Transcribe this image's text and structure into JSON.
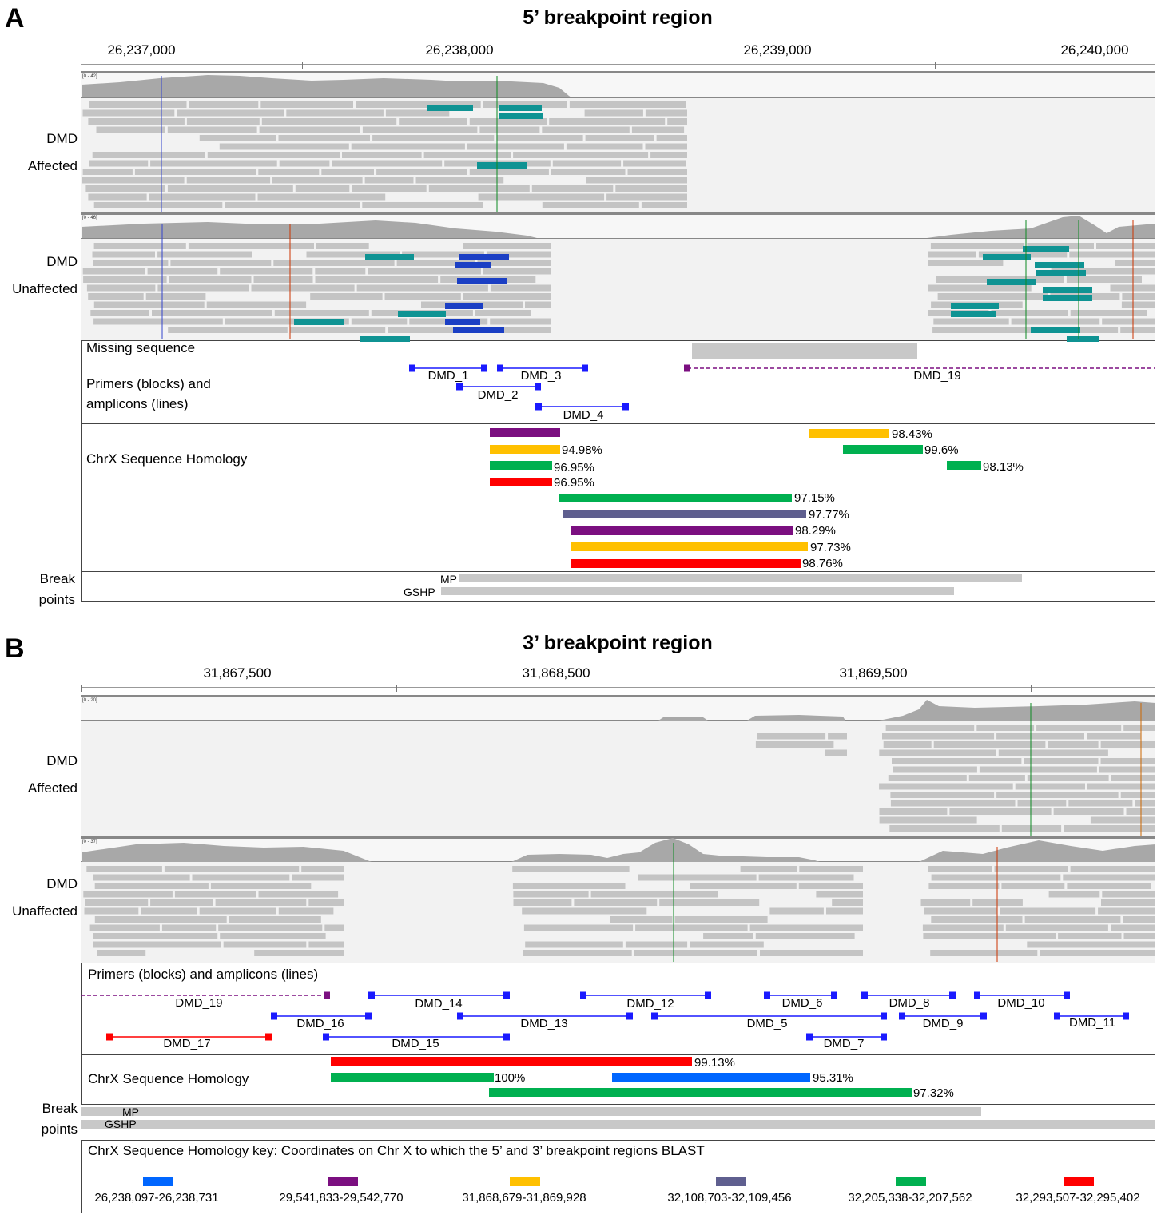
{
  "panel_a": {
    "letter": "A",
    "title": "5’ breakpoint region",
    "ticks": [
      "26,237,000",
      "26,238,000",
      "26,239,000",
      "26,240,000"
    ],
    "tracks": {
      "affected": {
        "line1": "DMD",
        "line2": "Affected",
        "range": "[0 - 42]"
      },
      "unaffected": {
        "line1": "DMD",
        "line2": "Unaffected",
        "range": "[0 - 46]"
      },
      "missing_label": "Missing sequence",
      "primers_label_1": "Primers (blocks) and",
      "primers_label_2": "amplicons (lines)",
      "homology_label": "ChrX Sequence Homology",
      "break_label_1": "Break",
      "break_label_2": "points"
    },
    "primers": [
      {
        "name": "DMD_1",
        "color": "#1a1aff"
      },
      {
        "name": "DMD_3",
        "color": "#1a1aff"
      },
      {
        "name": "DMD_2",
        "color": "#1a1aff"
      },
      {
        "name": "DMD_4",
        "color": "#1a1aff"
      },
      {
        "name": "DMD_19",
        "color": "#7b0f80"
      }
    ],
    "homology": [
      {
        "pct": "",
        "color": "#7b0f80"
      },
      {
        "pct": "94.98%",
        "color": "#ffc000"
      },
      {
        "pct": "96.95%",
        "color": "#00b050"
      },
      {
        "pct": "96.95%",
        "color": "#ff0000"
      },
      {
        "pct": "97.15%",
        "color": "#00b050"
      },
      {
        "pct": "97.77%",
        "color": "#5f5f8f"
      },
      {
        "pct": "98.29%",
        "color": "#7b0f80"
      },
      {
        "pct": "97.73%",
        "color": "#ffc000"
      },
      {
        "pct": "98.76%",
        "color": "#ff0000"
      },
      {
        "pct": "98.43%",
        "color": "#ffc000"
      },
      {
        "pct": "99.6%",
        "color": "#00b050"
      },
      {
        "pct": "98.13%",
        "color": "#00b050"
      }
    ],
    "breakpoints": [
      "MP",
      "GSHP"
    ]
  },
  "panel_b": {
    "letter": "B",
    "title": "3’ breakpoint region",
    "ticks": [
      "31,867,500",
      "31,868,500",
      "31,869,500"
    ],
    "tracks": {
      "affected": {
        "line1": "DMD",
        "line2": "Affected",
        "range": "[0 - 20]"
      },
      "unaffected": {
        "line1": "DMD",
        "line2": "Unaffected",
        "range": "[0 - 37]"
      },
      "primers_label": "Primers (blocks) and amplicons (lines)",
      "homology_label": "ChrX Sequence Homology",
      "break_label_1": "Break",
      "break_label_2": "points"
    },
    "primers": [
      {
        "name": "DMD_19",
        "color": "#7b0f80"
      },
      {
        "name": "DMD_14",
        "color": "#1a1aff"
      },
      {
        "name": "DMD_12",
        "color": "#1a1aff"
      },
      {
        "name": "DMD_6",
        "color": "#1a1aff"
      },
      {
        "name": "DMD_8",
        "color": "#1a1aff"
      },
      {
        "name": "DMD_10",
        "color": "#1a1aff"
      },
      {
        "name": "DMD_16",
        "color": "#1a1aff"
      },
      {
        "name": "DMD_13",
        "color": "#1a1aff"
      },
      {
        "name": "DMD_5",
        "color": "#1a1aff"
      },
      {
        "name": "DMD_9",
        "color": "#1a1aff"
      },
      {
        "name": "DMD_11",
        "color": "#1a1aff"
      },
      {
        "name": "DMD_17",
        "color": "#ff0000"
      },
      {
        "name": "DMD_15",
        "color": "#1a1aff"
      },
      {
        "name": "DMD_7",
        "color": "#1a1aff"
      }
    ],
    "homology": [
      {
        "pct": "99.13%",
        "color": "#ff0000"
      },
      {
        "pct": "100%",
        "color": "#00b050"
      },
      {
        "pct": "95.31%",
        "color": "#0066ff"
      },
      {
        "pct": "97.32%",
        "color": "#00b050"
      }
    ],
    "breakpoints": [
      "MP",
      "GSHP"
    ]
  },
  "key": {
    "title": "ChrX Sequence Homology key: Coordinates on Chr X to which the 5’ and 3’ breakpoint regions BLAST",
    "items": [
      {
        "label": "26,238,097-26,238,731",
        "color": "#0066ff"
      },
      {
        "label": "29,541,833-29,542,770",
        "color": "#7b0f80"
      },
      {
        "label": "31,868,679-31,869,928",
        "color": "#ffc000"
      },
      {
        "label": "32,108,703-32,109,456",
        "color": "#5f5f8f"
      },
      {
        "label": "32,205,338-32,207,562",
        "color": "#00b050"
      },
      {
        "label": "32,293,507-32,295,402",
        "color": "#ff0000"
      }
    ]
  }
}
